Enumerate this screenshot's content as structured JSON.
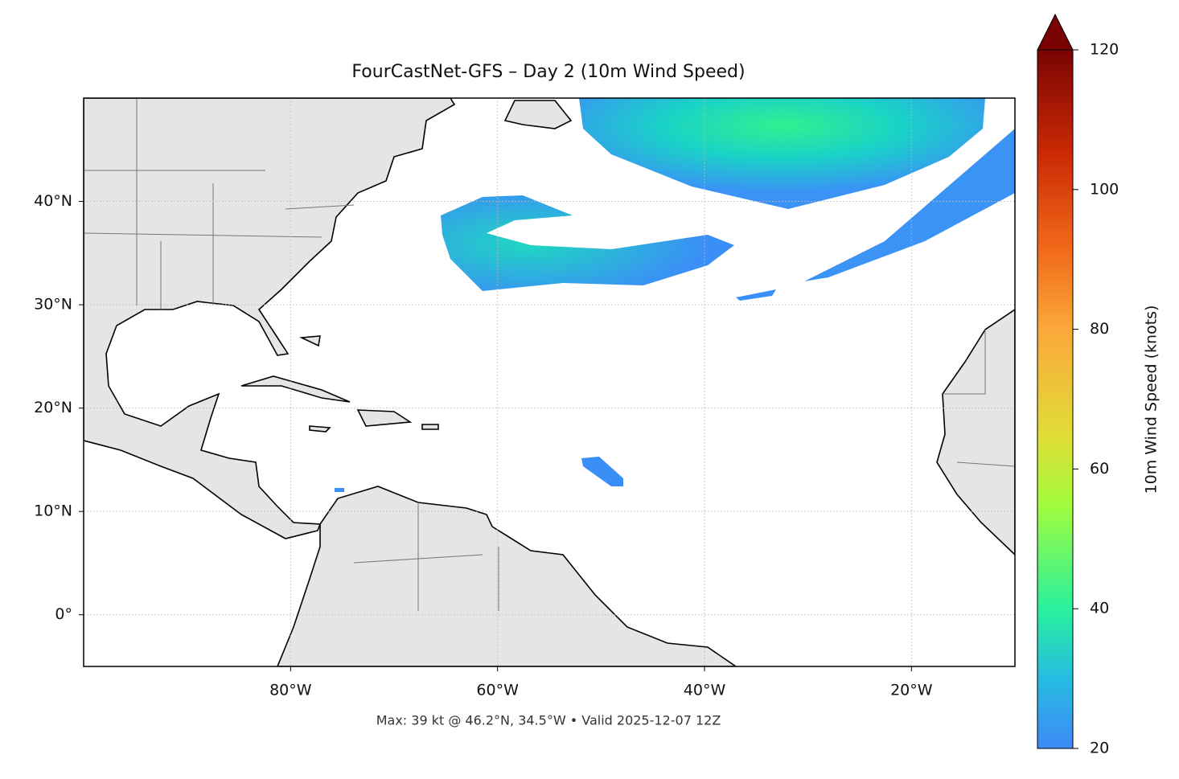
{
  "map": {
    "title": "FourCastNet-GFS – Day 2 (10m Wind Speed)",
    "xlim": [
      -100,
      -10
    ],
    "ylim": [
      -5,
      50
    ],
    "xticks": [
      {
        "value": -80,
        "label": "80°W"
      },
      {
        "value": -60,
        "label": "60°W"
      },
      {
        "value": -40,
        "label": "40°W"
      },
      {
        "value": -20,
        "label": "20°W"
      }
    ],
    "yticks": [
      {
        "value": 0,
        "label": "0°"
      },
      {
        "value": 10,
        "label": "10°N"
      },
      {
        "value": 20,
        "label": "20°N"
      },
      {
        "value": 30,
        "label": "30°N"
      },
      {
        "value": 40,
        "label": "40°N"
      }
    ],
    "grid": true,
    "colorbar": {
      "label": "10m Wind Speed (knots)",
      "lim": [
        20,
        120
      ],
      "ticks": [
        20,
        40,
        60,
        80,
        100,
        120
      ]
    },
    "note": "Max: 39 kt @ 46.2°N, 34.5°W • Valid 2025-12-07 12Z"
  }
}
